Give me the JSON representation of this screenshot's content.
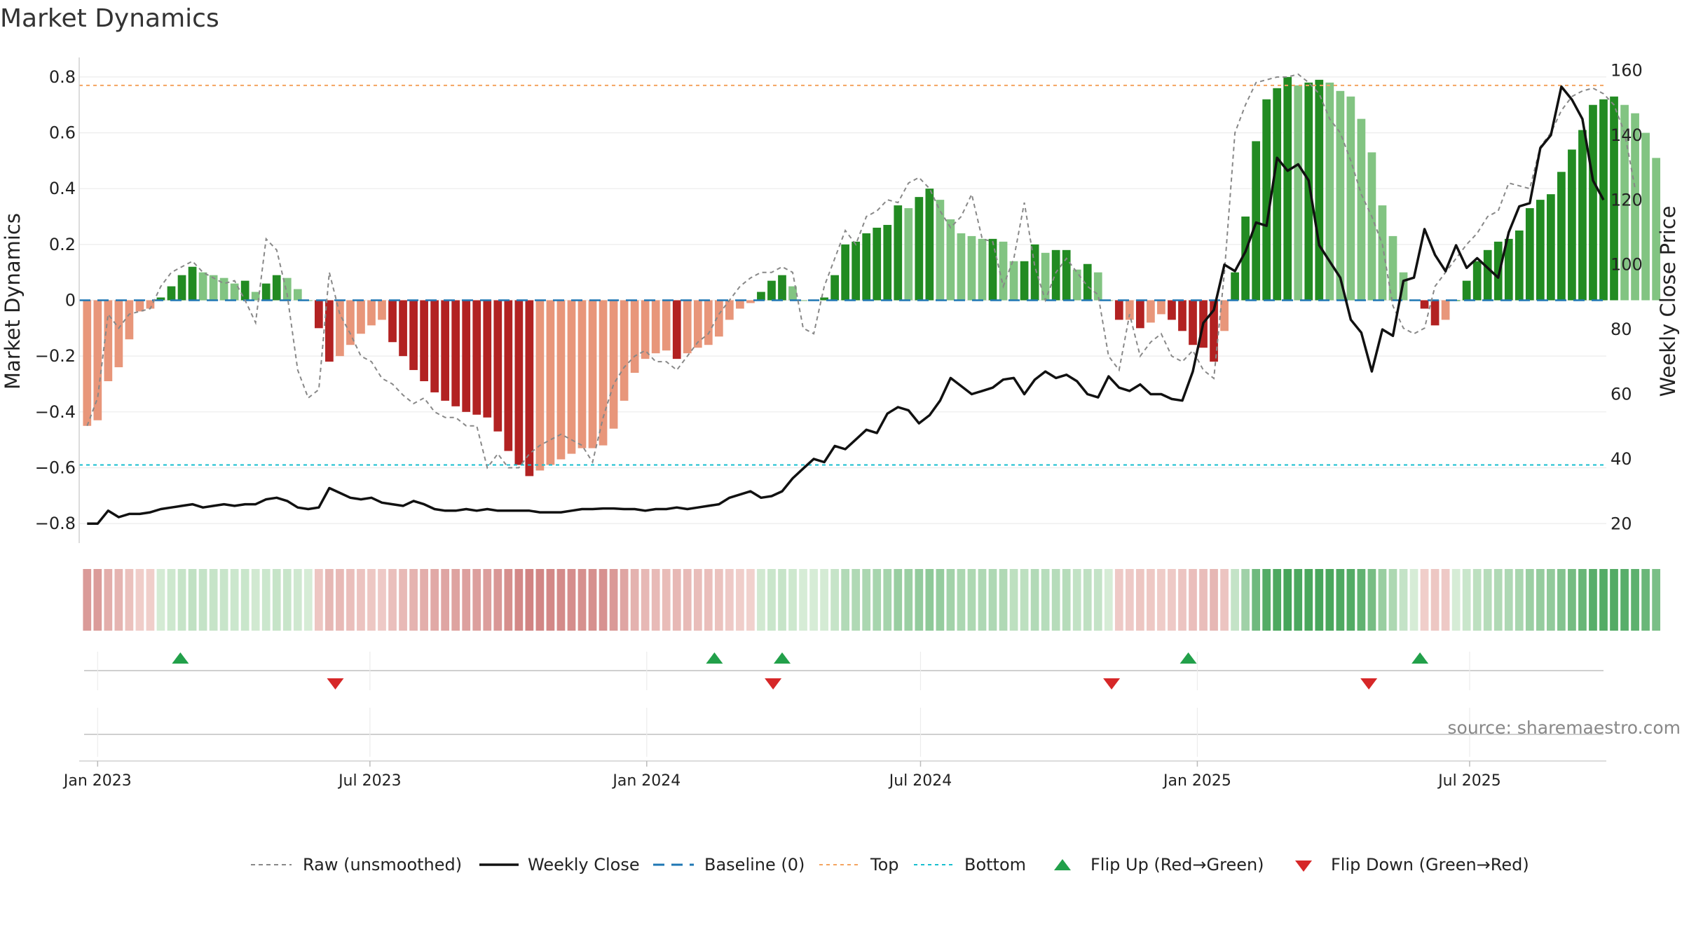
{
  "title": "Market Dynamics",
  "source_text": "source: sharemaestro.com",
  "chart_data": {
    "type": "bar",
    "xlabel": "",
    "ylabel_left": "Market Dynamics",
    "ylabel_right": "Weekly Close Price",
    "ylim_left": [
      -0.87,
      0.87
    ],
    "ylim_right": [
      14,
      164
    ],
    "yticks_left": [
      0.8,
      0.6,
      0.4,
      0.2,
      0,
      -0.2,
      -0.4,
      -0.6,
      -0.8
    ],
    "yticks_left_labels": [
      "0.8",
      "0.6",
      "0.4",
      "0.2",
      "0",
      "−0.2",
      "−0.4",
      "−0.6",
      "−0.8"
    ],
    "yticks_right": [
      160,
      140,
      120,
      100,
      80,
      60,
      40,
      20
    ],
    "x_start": "2022-12-23",
    "x_end": "2025-09-28",
    "x_ticks": [
      "2023-01-01",
      "2023-07-01",
      "2024-01-01",
      "2024-07-01",
      "2025-01-01",
      "2025-07-01"
    ],
    "x_tick_labels": [
      "Jan 2023",
      "Jul 2023",
      "Jan 2024",
      "Jul 2024",
      "Jan 2025",
      "Jul 2025"
    ],
    "first_week": "2022-12-25",
    "weeks": 143,
    "top_level": 0.77,
    "bottom_level": -0.59,
    "baseline_level": 0,
    "colors": {
      "strong_red": "#b22222",
      "weak_red": "#e8967a",
      "strong_green": "#228b22",
      "weak_green": "#82c482",
      "raw": "#888888",
      "close": "#111111",
      "baseline": "#1f77b4",
      "top": "#f4a460",
      "bottom": "#17becf",
      "flip_up": "#22a04a",
      "flip_down": "#d62728"
    },
    "series": [
      {
        "name": "Market Dynamics",
        "values": [
          -0.45,
          -0.43,
          -0.29,
          -0.24,
          -0.14,
          -0.04,
          -0.03,
          0.01,
          0.05,
          0.09,
          0.12,
          0.1,
          0.09,
          0.08,
          0.06,
          0.07,
          0.03,
          0.06,
          0.09,
          0.08,
          0.04,
          0.0,
          -0.1,
          -0.22,
          -0.2,
          -0.16,
          -0.12,
          -0.09,
          -0.07,
          -0.15,
          -0.2,
          -0.25,
          -0.29,
          -0.33,
          -0.36,
          -0.38,
          -0.4,
          -0.41,
          -0.42,
          -0.47,
          -0.54,
          -0.59,
          -0.63,
          -0.61,
          -0.59,
          -0.57,
          -0.55,
          -0.53,
          -0.53,
          -0.52,
          -0.46,
          -0.36,
          -0.26,
          -0.21,
          -0.19,
          -0.18,
          -0.21,
          -0.19,
          -0.17,
          -0.16,
          -0.13,
          -0.07,
          -0.03,
          -0.01,
          0.03,
          0.07,
          0.09,
          0.05,
          0.0,
          0.0,
          0.01,
          0.09,
          0.2,
          0.21,
          0.24,
          0.26,
          0.27,
          0.34,
          0.33,
          0.37,
          0.4,
          0.36,
          0.29,
          0.24,
          0.23,
          0.22,
          0.22,
          0.21,
          0.14,
          0.14,
          0.2,
          0.17,
          0.18,
          0.18,
          0.11,
          0.13,
          0.1,
          0.0,
          -0.07,
          -0.07,
          -0.1,
          -0.08,
          -0.05,
          -0.07,
          -0.11,
          -0.16,
          -0.17,
          -0.22,
          -0.11,
          0.1,
          0.3,
          0.57,
          0.72,
          0.76,
          0.8,
          0.77,
          0.78,
          0.79,
          0.78,
          0.75,
          0.73,
          0.65,
          0.53,
          0.34,
          0.23,
          0.1,
          0.0,
          -0.03,
          -0.09,
          -0.07,
          0.0,
          0.07,
          0.14,
          0.18,
          0.21,
          0.22,
          0.25,
          0.33,
          0.36,
          0.38,
          0.46,
          0.54,
          0.61,
          0.7,
          0.72,
          0.73,
          0.7,
          0.67,
          0.6,
          0.51
        ]
      },
      {
        "name": "Raw (unsmoothed)",
        "values": [
          -0.45,
          -0.35,
          -0.05,
          -0.1,
          -0.05,
          -0.04,
          -0.03,
          0.05,
          0.1,
          0.12,
          0.14,
          0.1,
          0.08,
          0.06,
          0.07,
          0.0,
          -0.08,
          0.22,
          0.18,
          0.02,
          -0.25,
          -0.35,
          -0.32,
          0.1,
          -0.05,
          -0.12,
          -0.2,
          -0.22,
          -0.28,
          -0.3,
          -0.34,
          -0.37,
          -0.35,
          -0.4,
          -0.42,
          -0.42,
          -0.45,
          -0.45,
          -0.6,
          -0.55,
          -0.6,
          -0.6,
          -0.55,
          -0.52,
          -0.5,
          -0.48,
          -0.5,
          -0.52,
          -0.58,
          -0.42,
          -0.3,
          -0.24,
          -0.2,
          -0.18,
          -0.22,
          -0.22,
          -0.25,
          -0.2,
          -0.15,
          -0.12,
          -0.05,
          0.0,
          0.05,
          0.08,
          0.1,
          0.1,
          0.12,
          0.1,
          -0.1,
          -0.12,
          0.05,
          0.15,
          0.25,
          0.2,
          0.3,
          0.32,
          0.36,
          0.35,
          0.42,
          0.44,
          0.4,
          0.32,
          0.26,
          0.3,
          0.38,
          0.22,
          0.21,
          0.05,
          0.15,
          0.35,
          0.12,
          0.0,
          0.1,
          0.15,
          0.1,
          0.05,
          0.02,
          -0.2,
          -0.25,
          -0.05,
          -0.2,
          -0.15,
          -0.12,
          -0.2,
          -0.22,
          -0.18,
          -0.25,
          -0.28,
          0.1,
          0.6,
          0.7,
          0.78,
          0.79,
          0.8,
          0.8,
          0.81,
          0.78,
          0.74,
          0.65,
          0.6,
          0.5,
          0.38,
          0.3,
          0.2,
          -0.02,
          -0.1,
          -0.12,
          -0.1,
          0.05,
          0.1,
          0.15,
          0.2,
          0.24,
          0.3,
          0.32,
          0.42,
          0.41,
          0.4,
          0.55,
          0.6,
          0.68,
          0.73,
          0.75,
          0.76,
          0.74,
          0.7,
          0.6,
          0.4
        ]
      },
      {
        "name": "Weekly Close",
        "values": [
          20,
          20,
          24,
          22,
          23,
          23,
          23.5,
          24.5,
          25,
          25.5,
          26,
          25,
          25.5,
          26,
          25.5,
          26,
          26,
          27.5,
          28,
          27,
          25,
          24.5,
          25,
          31,
          29.5,
          28,
          27.5,
          28,
          26.5,
          26,
          25.5,
          27,
          26,
          24.5,
          24,
          24,
          24.5,
          24,
          24.5,
          24,
          24,
          24,
          24,
          23.5,
          23.5,
          23.5,
          24,
          24.5,
          24.5,
          24.7,
          24.7,
          24.5,
          24.5,
          24,
          24.5,
          24.5,
          25,
          24.5,
          25,
          25.5,
          26,
          28,
          29,
          30,
          28,
          28.5,
          30,
          34,
          37,
          40,
          39,
          44,
          43,
          46,
          49,
          48,
          54,
          56,
          55,
          51,
          53.5,
          58,
          65,
          62.5,
          60,
          61,
          62,
          64.5,
          65,
          60,
          64.5,
          67,
          65,
          66,
          64,
          60,
          59,
          65.5,
          62,
          61,
          63,
          60,
          60,
          58.5,
          58,
          67,
          82,
          86,
          100,
          98,
          104,
          113,
          112,
          133,
          129,
          131,
          126,
          106,
          101,
          96,
          83,
          79,
          67,
          80,
          78,
          95,
          96,
          111,
          103,
          98,
          106,
          99,
          102,
          99,
          96,
          110,
          118,
          119,
          136,
          140,
          155,
          151,
          145,
          126,
          120
        ]
      }
    ],
    "legend": [
      "Raw (unsmoothed)",
      "Weekly Close",
      "Baseline (0)",
      "Top",
      "Bottom",
      "Flip Up (Red→Green)",
      "Flip Down (Green→Red)"
    ],
    "flip_up_dates": [
      "2023-02-25",
      "2024-02-15",
      "2024-03-31",
      "2024-12-26",
      "2025-05-29"
    ],
    "flip_down_dates": [
      "2023-06-08",
      "2024-03-25",
      "2024-11-05",
      "2025-04-25"
    ]
  }
}
